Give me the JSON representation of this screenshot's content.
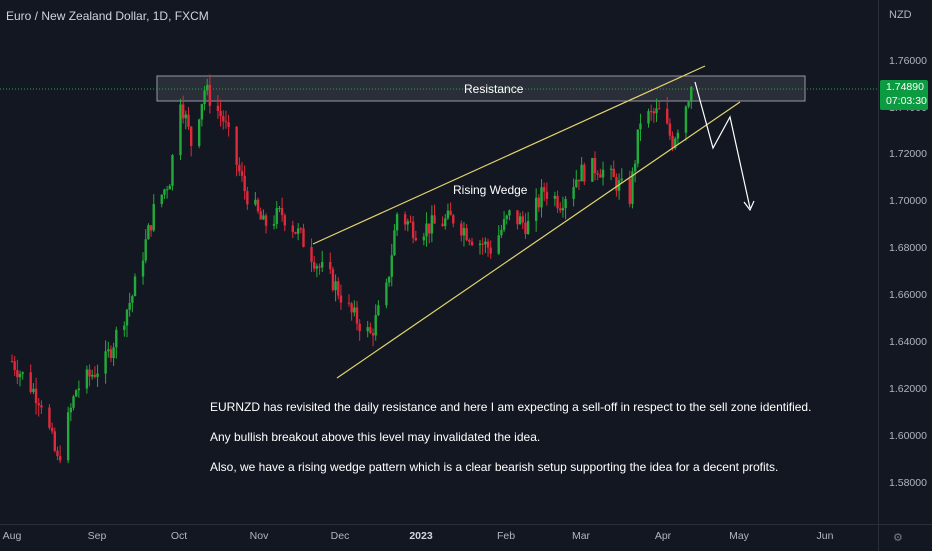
{
  "header": {
    "title": "Euro / New Zealand Dollar, 1D, FXCM"
  },
  "price_axis": {
    "currency": "NZD",
    "ticks": [
      "1.76000",
      "1.74000",
      "1.72000",
      "1.70000",
      "1.68000",
      "1.66000",
      "1.64000",
      "1.62000",
      "1.60000",
      "1.58000"
    ],
    "current_price": "1.74890",
    "countdown": "07:03:30"
  },
  "time_axis": {
    "ticks": [
      "Aug",
      "Sep",
      "Oct",
      "Nov",
      "Dec",
      "2023",
      "Feb",
      "Mar",
      "Apr",
      "May",
      "Jun"
    ]
  },
  "annotations": {
    "resistance": "Resistance",
    "rising_wedge": "Rising Wedge",
    "note1": "EURNZD has revisited the daily resistance and here I am expecting a sell-off in respect to the sell zone identified.",
    "note2": "Any bullish breakout above this level may invalidated the idea.",
    "note3": "Also, we have a rising wedge pattern which is a clear bearish setup supporting the idea for a decent profits."
  },
  "colors": {
    "up": "#22ab3a",
    "down": "#e0293c",
    "background": "#131722",
    "wedge": "#e3d46d",
    "price_line": "#22ab3a"
  },
  "chart_data": {
    "type": "candlestick",
    "title": "Euro / New Zealand Dollar, 1D, FXCM",
    "ylabel": "NZD",
    "ylim": [
      1.57,
      1.768
    ],
    "x_ticks": [
      "Aug",
      "Sep",
      "Oct",
      "Nov",
      "Dec",
      "2023",
      "Feb",
      "Mar",
      "Apr",
      "May",
      "Jun"
    ],
    "last_price": 1.7489,
    "resistance_zone": [
      1.741,
      1.752
    ],
    "close_path": [
      [
        "2022-08-01",
        1.632
      ],
      [
        "2022-08-12",
        1.615
      ],
      [
        "2022-08-18",
        1.589
      ],
      [
        "2022-08-25",
        1.62
      ],
      [
        "2022-09-05",
        1.632
      ],
      [
        "2022-09-15",
        1.66
      ],
      [
        "2022-09-23",
        1.696
      ],
      [
        "2022-09-29",
        1.71
      ],
      [
        "2022-10-03",
        1.745
      ],
      [
        "2022-10-07",
        1.725
      ],
      [
        "2022-10-12",
        1.748
      ],
      [
        "2022-10-19",
        1.735
      ],
      [
        "2022-10-27",
        1.705
      ],
      [
        "2022-11-03",
        1.69
      ],
      [
        "2022-11-10",
        1.695
      ],
      [
        "2022-11-17",
        1.685
      ],
      [
        "2022-11-24",
        1.672
      ],
      [
        "2022-11-29",
        1.666
      ],
      [
        "2022-12-06",
        1.652
      ],
      [
        "2022-12-13",
        1.643
      ],
      [
        "2022-12-19",
        1.662
      ],
      [
        "2022-12-23",
        1.695
      ],
      [
        "2022-12-30",
        1.688
      ],
      [
        "2023-01-06",
        1.69
      ],
      [
        "2023-01-13",
        1.693
      ],
      [
        "2023-01-20",
        1.685
      ],
      [
        "2023-01-27",
        1.68
      ],
      [
        "2023-02-03",
        1.694
      ],
      [
        "2023-02-10",
        1.69
      ],
      [
        "2023-02-16",
        1.705
      ],
      [
        "2023-02-22",
        1.7
      ],
      [
        "2023-03-01",
        1.712
      ],
      [
        "2023-03-08",
        1.715
      ],
      [
        "2023-03-15",
        1.708
      ],
      [
        "2023-03-20",
        1.702
      ],
      [
        "2023-03-24",
        1.735
      ],
      [
        "2023-03-31",
        1.738
      ],
      [
        "2023-04-05",
        1.726
      ],
      [
        "2023-04-10",
        1.742
      ],
      [
        "2023-04-12",
        1.7489
      ]
    ],
    "rising_wedge": {
      "upper": [
        [
          "2022-11-27",
          1.683
        ],
        [
          "2023-04-18",
          1.757
        ]
      ],
      "lower": [
        [
          "2022-12-02",
          1.624
        ],
        [
          "2023-04-29",
          1.742
        ]
      ]
    },
    "projection": [
      [
        "2023-04-13",
        1.749
      ],
      [
        "2023-04-21",
        1.723
      ],
      [
        "2023-04-26",
        1.735
      ],
      [
        "2023-05-03",
        1.697
      ]
    ]
  }
}
